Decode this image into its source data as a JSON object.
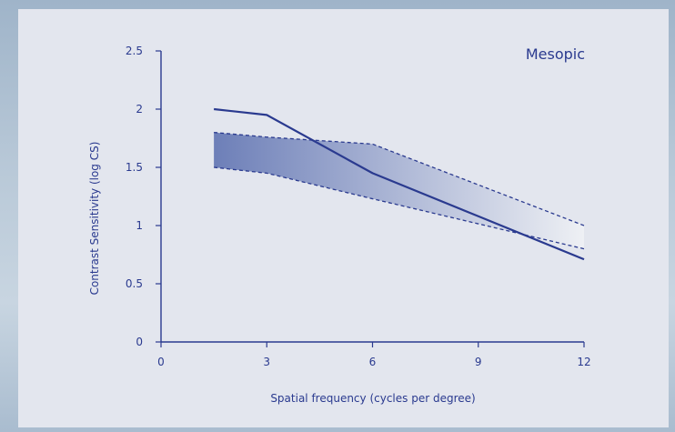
{
  "chart_data": {
    "type": "line",
    "title": "Mesopic",
    "xlabel": "Spatial frequency (cycles per degree)",
    "ylabel": "Contrast Sensitivity (log CS)",
    "xlim": [
      0,
      12
    ],
    "ylim": [
      0,
      2.5
    ],
    "x_ticks": [
      "0",
      "3",
      "6",
      "9",
      "12"
    ],
    "y_ticks": [
      "0",
      "0.5",
      "1",
      "1.5",
      "2",
      "2.5"
    ],
    "grid": false,
    "series": [
      {
        "style": "solid",
        "x": [
          1.5,
          3,
          6,
          9,
          12
        ],
        "y": [
          2.0,
          1.95,
          1.45,
          1.08,
          0.71
        ]
      },
      {
        "style": "dashed-upper",
        "x": [
          1.5,
          3,
          6,
          12
        ],
        "y": [
          1.8,
          1.76,
          1.7,
          1.0
        ]
      },
      {
        "style": "dashed-lower",
        "x": [
          1.5,
          3,
          6,
          12
        ],
        "y": [
          1.5,
          1.45,
          1.23,
          0.8
        ]
      }
    ],
    "band": {
      "between": [
        "dashed-upper",
        "dashed-lower"
      ]
    },
    "colors": {
      "line": "#2a3a8f",
      "band_start": "#6d7fb8",
      "band_end": "#eef0f4"
    }
  }
}
